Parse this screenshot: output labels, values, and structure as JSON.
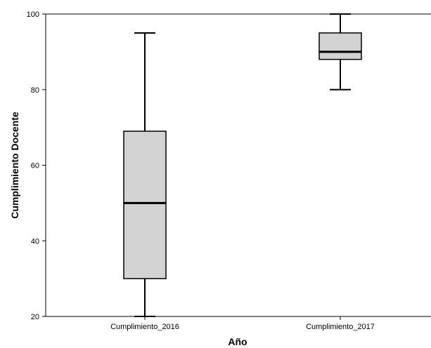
{
  "chart_data": {
    "type": "boxplot",
    "title": "",
    "xlabel": "Año",
    "ylabel": "Cumplimiento Docente",
    "ylim": [
      20,
      100
    ],
    "yticks": [
      20,
      40,
      60,
      80,
      100
    ],
    "categories": [
      "Cumplimiento_2016",
      "Cumplimiento_2017"
    ],
    "boxes": [
      {
        "category": "Cumplimiento_2016",
        "whisker_low": 20,
        "q1": 30,
        "median": 50,
        "q3": 69,
        "whisker_high": 95
      },
      {
        "category": "Cumplimiento_2017",
        "whisker_low": 80,
        "q1": 88,
        "median": 90,
        "q3": 95,
        "whisker_high": 100
      }
    ],
    "box_fill": "#d3d3d3",
    "grid": false
  }
}
